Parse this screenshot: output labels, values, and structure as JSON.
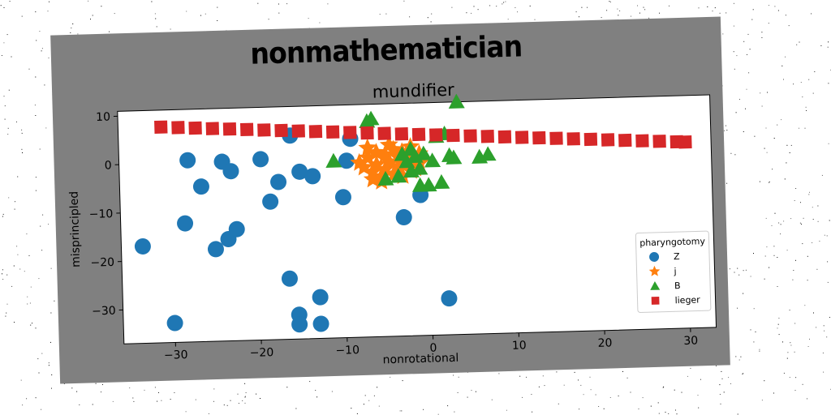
{
  "figure": {
    "title": "nonmathematician",
    "background": "#808080"
  },
  "chart_data": {
    "type": "scatter",
    "title": "mundifier",
    "xlabel": "nonrotational",
    "ylabel": "misprincipled",
    "xlim": [
      -36,
      33
    ],
    "ylim": [
      -37,
      11
    ],
    "xticks": [
      -30,
      -20,
      -10,
      0,
      10,
      20,
      30
    ],
    "yticks": [
      10,
      0,
      -10,
      -20,
      -30
    ],
    "xtick_labels": [
      "−30",
      "−20",
      "−10",
      "0",
      "10",
      "20",
      "30"
    ],
    "ytick_labels": [
      "10",
      "0",
      "−10",
      "−20",
      "−30"
    ],
    "grid": false,
    "legend": {
      "title": "pharyngotomy",
      "placement": "lower-right"
    },
    "series": [
      {
        "name": "Z",
        "marker": "circle",
        "color": "#1f77b4",
        "points": [
          [
            -33.5,
            -17
          ],
          [
            -30,
            -33
          ],
          [
            -28.5,
            -12.5
          ],
          [
            -28,
            0.5
          ],
          [
            -26.5,
            -5
          ],
          [
            -25,
            -18
          ],
          [
            -24,
            0
          ],
          [
            -23.5,
            -16
          ],
          [
            -23,
            -2
          ],
          [
            -22.5,
            -14
          ],
          [
            -19.5,
            0.3
          ],
          [
            -18.5,
            -8.5
          ],
          [
            -17.5,
            -4.5
          ],
          [
            -16.5,
            -24.5
          ],
          [
            -16,
            5
          ],
          [
            -15.5,
            -32
          ],
          [
            -15.5,
            -34
          ],
          [
            -15,
            -2.5
          ],
          [
            -13.5,
            -3.5
          ],
          [
            -13,
            -28.5
          ],
          [
            -13,
            -34
          ],
          [
            -10,
            -8
          ],
          [
            -9.5,
            -0.5
          ],
          [
            -9,
            4
          ],
          [
            -3,
            -12.5
          ],
          [
            -1,
            -8
          ],
          [
            2,
            -29.5
          ]
        ]
      },
      {
        "name": "j",
        "marker": "star",
        "color": "#ff7f0e",
        "points": [
          [
            -8,
            -1
          ],
          [
            -7.5,
            -2
          ],
          [
            -7,
            0
          ],
          [
            -6.5,
            -3
          ],
          [
            -6,
            -1.5
          ],
          [
            -6,
            1
          ],
          [
            -5.5,
            -4
          ],
          [
            -5,
            0.5
          ],
          [
            -5,
            -2.5
          ],
          [
            -4.5,
            -1
          ],
          [
            -4,
            -3.5
          ],
          [
            -4,
            1.5
          ],
          [
            -3.5,
            0
          ],
          [
            -3.5,
            -2
          ],
          [
            -3,
            -4
          ],
          [
            -3,
            1
          ],
          [
            -2.5,
            -1.5
          ],
          [
            -2.5,
            0.5
          ],
          [
            -2,
            -3
          ],
          [
            -2,
            2
          ],
          [
            -1.5,
            -1
          ],
          [
            -1.5,
            -2.5
          ],
          [
            -1,
            0.5
          ],
          [
            -1,
            -1.5
          ],
          [
            -5.5,
            -5
          ],
          [
            -4.5,
            2.5
          ],
          [
            -6.5,
            -4.5
          ],
          [
            -7,
            2
          ]
        ]
      },
      {
        "name": "B",
        "marker": "triangle",
        "color": "#2ca02c",
        "points": [
          [
            -11,
            -0.5
          ],
          [
            -7,
            7.5
          ],
          [
            -6.5,
            8
          ],
          [
            -5,
            -4.5
          ],
          [
            -3.5,
            -4
          ],
          [
            -3,
            0.5
          ],
          [
            -2.5,
            -1
          ],
          [
            -2,
            1.5
          ],
          [
            -2,
            -3
          ],
          [
            -1.5,
            0
          ],
          [
            -1,
            -2.5
          ],
          [
            -1,
            -6
          ],
          [
            -0.5,
            0.5
          ],
          [
            0,
            -6
          ],
          [
            0.5,
            -1
          ],
          [
            1,
            4
          ],
          [
            1.5,
            -5.5
          ],
          [
            2,
            4.5
          ],
          [
            2.5,
            0
          ],
          [
            3,
            -0.5
          ],
          [
            3.5,
            11
          ],
          [
            6,
            -0.5
          ],
          [
            7,
            0
          ]
        ]
      },
      {
        "name": "lieger",
        "marker": "square",
        "color": "#d62728",
        "points": [
          [
            -31,
            7.5
          ],
          [
            -29,
            7.3
          ],
          [
            -27,
            7.1
          ],
          [
            -25,
            6.9
          ],
          [
            -23,
            6.7
          ],
          [
            -21,
            6.5
          ],
          [
            -19,
            6.3
          ],
          [
            -17,
            6.1
          ],
          [
            -15,
            5.9
          ],
          [
            -13,
            5.7
          ],
          [
            -11,
            5.5
          ],
          [
            -9,
            5.3
          ],
          [
            -7,
            5.1
          ],
          [
            -5,
            4.9
          ],
          [
            -3,
            4.7
          ],
          [
            -1,
            4.5
          ],
          [
            1,
            4.3
          ],
          [
            3,
            4.1
          ],
          [
            5,
            3.9
          ],
          [
            7,
            3.7
          ],
          [
            9,
            3.5
          ],
          [
            11,
            3.3
          ],
          [
            13,
            3.1
          ],
          [
            15,
            2.9
          ],
          [
            17,
            2.7
          ],
          [
            19,
            2.5
          ],
          [
            21,
            2.3
          ],
          [
            23,
            2.1
          ],
          [
            25,
            1.9
          ],
          [
            27,
            1.7
          ],
          [
            29,
            1.5
          ],
          [
            30,
            1.4
          ]
        ]
      }
    ]
  }
}
